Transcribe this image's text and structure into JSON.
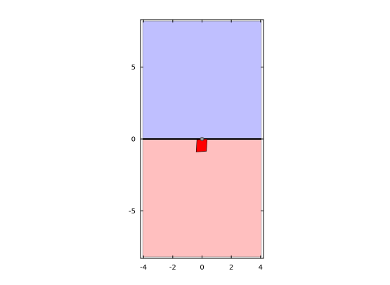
{
  "chart_data": {
    "type": "area",
    "xlim": [
      -4.2,
      4.2
    ],
    "ylim": [
      -8.3,
      8.3
    ],
    "x_ticks": [
      {
        "value": -4,
        "label": "-4"
      },
      {
        "value": -2,
        "label": "-2"
      },
      {
        "value": 0,
        "label": "0"
      },
      {
        "value": 2,
        "label": "2"
      },
      {
        "value": 4,
        "label": "4"
      }
    ],
    "y_ticks": [
      {
        "value": 5,
        "label": "5"
      },
      {
        "value": 0,
        "label": "0"
      },
      {
        "value": -5,
        "label": "-5"
      }
    ],
    "regions": [
      {
        "name": "upper",
        "x": [
          -4.05,
          4.05
        ],
        "y": [
          0,
          8.2
        ],
        "color": "#bfbfff"
      },
      {
        "name": "lower",
        "x": [
          -4.05,
          4.05
        ],
        "y": [
          -8.2,
          0
        ],
        "color": "#ffbfbf"
      }
    ],
    "boundary_line": {
      "y": 0,
      "x": [
        -4.05,
        4.05
      ],
      "color": "#000000"
    },
    "body": {
      "corners": [
        [
          -0.35,
          -0.05
        ],
        [
          0.35,
          0.0
        ],
        [
          0.3,
          -0.85
        ],
        [
          -0.4,
          -0.9
        ]
      ],
      "color": "#ff0000"
    },
    "pivot": {
      "x": 0.0,
      "y": 0.0
    },
    "grid": false,
    "legend": "none",
    "title": "",
    "xlabel": "",
    "ylabel": ""
  }
}
